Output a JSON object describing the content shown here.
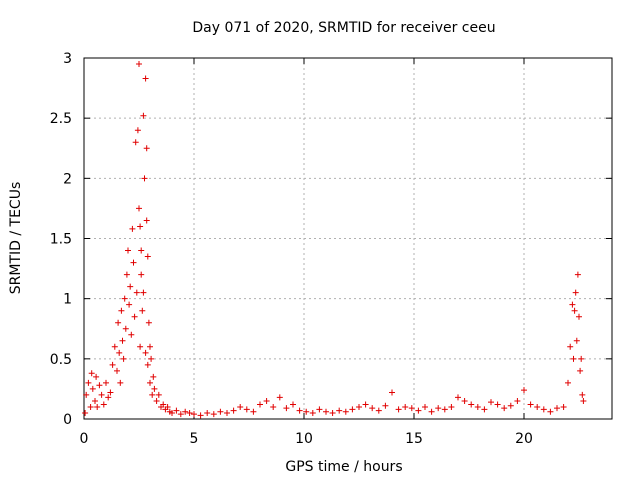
{
  "chart_data": {
    "type": "scatter",
    "title": "Day 071 of 2020, SRMTID for receiver ceeu",
    "xlabel": "GPS time / hours",
    "ylabel": "SRMTID / TECUs",
    "xlim": [
      0,
      24
    ],
    "ylim": [
      0,
      3
    ],
    "xticks": [
      0,
      5,
      10,
      15,
      20
    ],
    "yticks": [
      0,
      0.5,
      1,
      1.5,
      2,
      2.5,
      3
    ],
    "xtick_labels": [
      "0",
      "5",
      "10",
      "15",
      "20"
    ],
    "ytick_labels": [
      "0",
      "0.5",
      "1",
      "1.5",
      "2",
      "2.5",
      "3"
    ],
    "grid": true,
    "marker": "+",
    "color": "#e00000",
    "series": [
      {
        "name": "SRMTID",
        "x": [
          0.05,
          0.1,
          0.2,
          0.3,
          0.35,
          0.4,
          0.5,
          0.55,
          0.6,
          0.7,
          0.8,
          0.9,
          1.0,
          1.1,
          1.2,
          1.3,
          1.4,
          1.5,
          1.55,
          1.6,
          1.65,
          1.7,
          1.75,
          1.8,
          1.85,
          1.9,
          1.95,
          2.0,
          2.05,
          2.1,
          2.15,
          2.2,
          2.25,
          2.3,
          2.35,
          2.4,
          2.45,
          2.5,
          2.5,
          2.55,
          2.55,
          2.6,
          2.6,
          2.65,
          2.7,
          2.7,
          2.75,
          2.8,
          2.8,
          2.85,
          2.85,
          2.9,
          2.9,
          2.95,
          3.0,
          3.0,
          3.05,
          3.1,
          3.15,
          3.2,
          3.3,
          3.4,
          3.5,
          3.6,
          3.7,
          3.8,
          3.9,
          4.0,
          4.2,
          4.4,
          4.6,
          4.8,
          5.0,
          5.3,
          5.6,
          5.9,
          6.2,
          6.5,
          6.8,
          7.1,
          7.4,
          7.7,
          8.0,
          8.3,
          8.6,
          8.9,
          9.2,
          9.5,
          9.8,
          10.1,
          10.4,
          10.7,
          11.0,
          11.3,
          11.6,
          11.9,
          12.2,
          12.5,
          12.8,
          13.1,
          13.4,
          13.7,
          14.0,
          14.3,
          14.6,
          14.9,
          15.2,
          15.5,
          15.8,
          16.1,
          16.4,
          16.7,
          17.0,
          17.3,
          17.6,
          17.9,
          18.2,
          18.5,
          18.8,
          19.1,
          19.4,
          19.7,
          20.0,
          20.3,
          20.6,
          20.9,
          21.2,
          21.5,
          21.8,
          22.0,
          22.1,
          22.2,
          22.25,
          22.3,
          22.35,
          22.4,
          22.45,
          22.5,
          22.55,
          22.6,
          22.65,
          22.7
        ],
        "y": [
          0.05,
          0.2,
          0.3,
          0.1,
          0.38,
          0.25,
          0.15,
          0.35,
          0.1,
          0.28,
          0.2,
          0.12,
          0.3,
          0.18,
          0.22,
          0.45,
          0.6,
          0.4,
          0.8,
          0.55,
          0.3,
          0.9,
          0.65,
          0.5,
          1.0,
          0.75,
          1.2,
          1.4,
          0.95,
          1.1,
          0.7,
          1.58,
          1.3,
          0.85,
          2.3,
          1.05,
          2.4,
          2.95,
          1.75,
          1.6,
          0.6,
          1.4,
          1.2,
          0.9,
          2.52,
          1.05,
          2.0,
          2.83,
          0.55,
          1.65,
          2.25,
          1.35,
          0.45,
          0.8,
          0.3,
          0.6,
          0.5,
          0.2,
          0.35,
          0.25,
          0.15,
          0.2,
          0.1,
          0.12,
          0.08,
          0.1,
          0.06,
          0.05,
          0.07,
          0.04,
          0.06,
          0.05,
          0.04,
          0.03,
          0.05,
          0.04,
          0.06,
          0.05,
          0.07,
          0.1,
          0.08,
          0.06,
          0.12,
          0.15,
          0.1,
          0.18,
          0.09,
          0.12,
          0.07,
          0.06,
          0.05,
          0.08,
          0.06,
          0.05,
          0.07,
          0.06,
          0.08,
          0.1,
          0.12,
          0.09,
          0.07,
          0.11,
          0.22,
          0.08,
          0.1,
          0.09,
          0.07,
          0.1,
          0.06,
          0.09,
          0.08,
          0.1,
          0.18,
          0.15,
          0.12,
          0.1,
          0.08,
          0.14,
          0.12,
          0.09,
          0.11,
          0.15,
          0.24,
          0.12,
          0.1,
          0.08,
          0.06,
          0.09,
          0.1,
          0.3,
          0.6,
          0.95,
          0.5,
          0.9,
          1.05,
          0.65,
          1.2,
          0.85,
          0.4,
          0.5,
          0.2,
          0.15
        ]
      }
    ]
  }
}
